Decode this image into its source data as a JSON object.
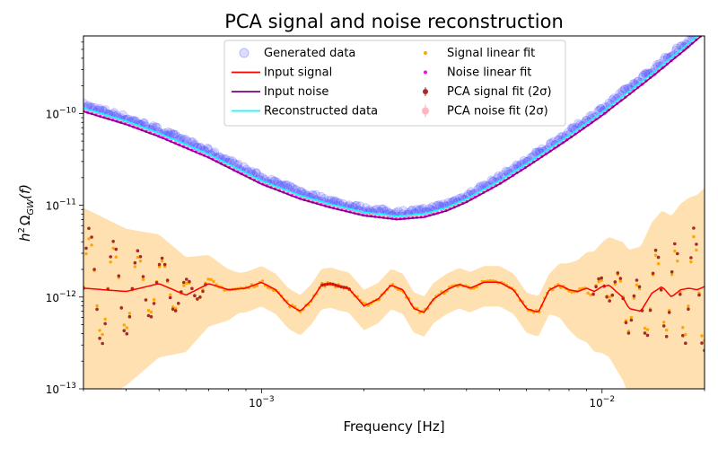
{
  "chart_data": {
    "type": "scatter",
    "title": "PCA signal and noise reconstruction",
    "xlabel": "Frequency [Hz]",
    "ylabel_main": "h",
    "ylabel_sup": "2",
    "ylabel_omega": "Ω",
    "ylabel_sub": "GW",
    "ylabel_tail": "(f)",
    "xscale": "log",
    "yscale": "log",
    "xlim": [
      0.0003,
      0.02
    ],
    "ylim": [
      1e-13,
      7e-10
    ],
    "xticks": [
      {
        "value": 0.001,
        "base": "10",
        "exp": "−3"
      },
      {
        "value": 0.01,
        "base": "10",
        "exp": "−2"
      }
    ],
    "yticks": [
      {
        "value": 1e-13,
        "base": "10",
        "exp": "−13"
      },
      {
        "value": 1e-12,
        "base": "10",
        "exp": "−12"
      },
      {
        "value": 1e-11,
        "base": "10",
        "exp": "−11"
      },
      {
        "value": 1e-10,
        "base": "10",
        "exp": "−10"
      }
    ],
    "legend_position": "upper-center",
    "legend": [
      {
        "label": "Generated data",
        "kind": "circle-light",
        "color": "#4040ff"
      },
      {
        "label": "Input signal",
        "kind": "line",
        "color": "#ff0000"
      },
      {
        "label": "Input noise",
        "kind": "line",
        "color": "#800080"
      },
      {
        "label": "Reconstructed data",
        "kind": "line",
        "color": "#00ffff"
      },
      {
        "label": "Signal linear fit",
        "kind": "dot",
        "color": "#ffa500"
      },
      {
        "label": "Noise linear fit",
        "kind": "dot",
        "color": "#ff00ff"
      },
      {
        "label": "PCA signal fit (2σ)",
        "kind": "errdot",
        "color": "#a52a2a"
      },
      {
        "label": "PCA noise fit (2σ)",
        "kind": "errdot-light",
        "color": "#ffb6c1"
      }
    ],
    "series": [
      {
        "name": "Input noise",
        "color": "#800080",
        "x": [
          0.0003,
          0.0004,
          0.0005,
          0.0007,
          0.001,
          0.0013,
          0.0016,
          0.002,
          0.0025,
          0.003,
          0.0035,
          0.004,
          0.005,
          0.006,
          0.007,
          0.008,
          0.01,
          0.012,
          0.014,
          0.017,
          0.02
        ],
        "y": [
          1.05e-10,
          7.6e-11,
          5.6e-11,
          3.3e-11,
          1.7e-11,
          1.17e-11,
          9.4e-12,
          7.7e-12,
          7e-12,
          7.4e-12,
          8.7e-12,
          1.08e-11,
          1.7e-11,
          2.6e-11,
          3.8e-11,
          5.3e-11,
          9.5e-11,
          1.6e-10,
          2.5e-10,
          4.5e-10,
          7.5e-10
        ]
      },
      {
        "name": "Input signal",
        "color": "#ff0000",
        "x": [
          0.0003,
          0.0004,
          0.0005,
          0.0006,
          0.0007,
          0.0008,
          0.0009,
          0.001,
          0.0011,
          0.0012,
          0.0013,
          0.0014,
          0.0015,
          0.0016,
          0.0017,
          0.0018,
          0.002,
          0.0022,
          0.0024,
          0.0026,
          0.0028,
          0.003,
          0.0032,
          0.0035,
          0.0038,
          0.0041,
          0.0045,
          0.005,
          0.0055,
          0.006,
          0.0065,
          0.007,
          0.0075,
          0.008,
          0.0085,
          0.009,
          0.0095,
          0.01,
          0.0105,
          0.011,
          0.0115,
          0.012,
          0.013,
          0.014,
          0.015,
          0.016,
          0.017,
          0.018,
          0.019,
          0.02
        ],
        "y": [
          1.25e-12,
          1.15e-12,
          1.4e-12,
          1.05e-12,
          1.4e-12,
          1.2e-12,
          1.25e-12,
          1.45e-12,
          1.2e-12,
          8.3e-13,
          7e-13,
          9.2e-13,
          1.35e-12,
          1.4e-12,
          1.3e-12,
          1.25e-12,
          8e-13,
          9.5e-13,
          1.35e-12,
          1.2e-12,
          7.5e-13,
          6.8e-13,
          9.5e-13,
          1.2e-12,
          1.38e-12,
          1.25e-12,
          1.45e-12,
          1.45e-12,
          1.2e-12,
          7.5e-13,
          6.8e-13,
          1.2e-12,
          1.35e-12,
          1.2e-12,
          1.15e-12,
          1.25e-12,
          1.15e-12,
          1.3e-12,
          1.35e-12,
          1.15e-12,
          1e-12,
          7.5e-13,
          7e-13,
          1.1e-12,
          1.3e-12,
          1e-12,
          1.2e-12,
          1.25e-12,
          1.2e-12,
          1.3e-12
        ]
      }
    ],
    "bands": [
      {
        "name": "PCA signal fit (2σ) band",
        "color": "#ffdead"
      }
    ]
  }
}
